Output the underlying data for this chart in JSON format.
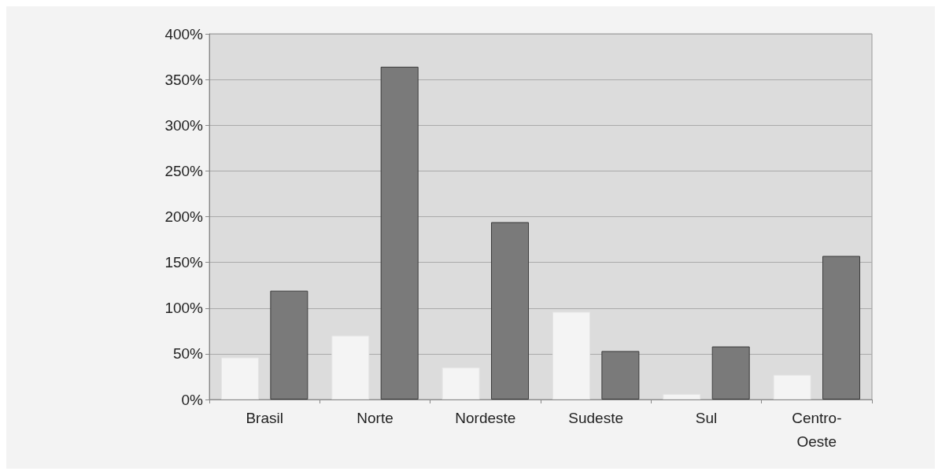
{
  "chart_data": {
    "type": "bar",
    "categories": [
      "Brasil",
      "Norte",
      "Nordeste",
      "Sudeste",
      "Sul",
      "Centro-\nOeste"
    ],
    "series": [
      {
        "color": "#f4f4f4",
        "values": [
          46,
          70,
          35,
          96,
          6,
          27
        ]
      },
      {
        "color": "#7a7a7a",
        "values": [
          119,
          364,
          194,
          53,
          58,
          157
        ]
      }
    ],
    "ylim": [
      0,
      400
    ],
    "yticks": [
      {
        "value": 0,
        "label": "0%"
      },
      {
        "value": 50,
        "label": "50%"
      },
      {
        "value": 100,
        "label": "100%"
      },
      {
        "value": 150,
        "label": "150%"
      },
      {
        "value": 200,
        "label": "200%"
      },
      {
        "value": 250,
        "label": "250%"
      },
      {
        "value": 300,
        "label": "300%"
      },
      {
        "value": 350,
        "label": "350%"
      },
      {
        "value": 400,
        "label": "400%"
      }
    ],
    "grid": "y"
  }
}
